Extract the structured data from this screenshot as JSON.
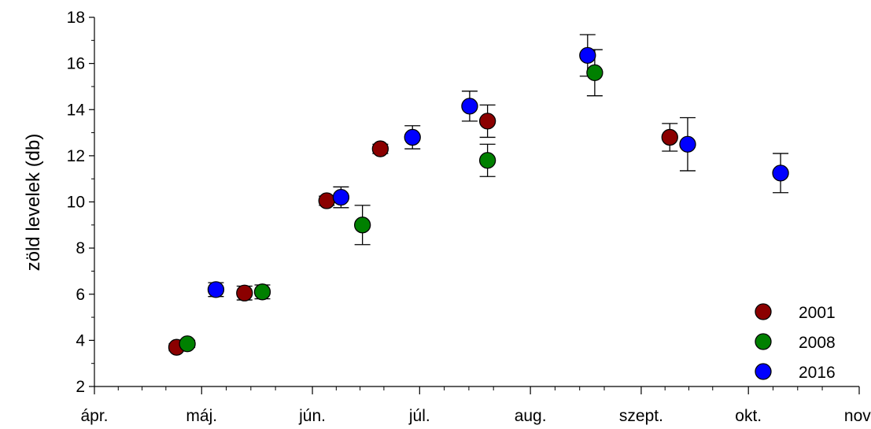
{
  "chart_data": {
    "type": "scatter",
    "title": "",
    "xlabel": "",
    "ylabel": "zöld levelek (db)",
    "x_ticks": [
      "ápr.",
      "máj.",
      "jún.",
      "júl.",
      "aug.",
      "szept.",
      "okt.",
      "nov."
    ],
    "xlim": [
      "04-01",
      "11-01"
    ],
    "ylim": [
      2,
      18
    ],
    "y_ticks": [
      2,
      4,
      6,
      8,
      10,
      12,
      14,
      16,
      18
    ],
    "grid": false,
    "legend_position": "bottom-right",
    "series": [
      {
        "name": "2001",
        "color": "#8b0000",
        "points": [
          {
            "x": "04-24",
            "y": 3.7,
            "err": 0.15
          },
          {
            "x": "05-13",
            "y": 6.05,
            "err": 0.3
          },
          {
            "x": "06-05",
            "y": 10.05,
            "err": 0.2
          },
          {
            "x": "06-20",
            "y": 12.3,
            "err": 0.2
          },
          {
            "x": "07-20",
            "y": 13.5,
            "err": 0.7
          },
          {
            "x": "09-09",
            "y": 12.8,
            "err": 0.6
          }
        ]
      },
      {
        "name": "2008",
        "color": "#008000",
        "points": [
          {
            "x": "04-27",
            "y": 3.85,
            "err": 0.15
          },
          {
            "x": "05-18",
            "y": 6.1,
            "err": 0.3
          },
          {
            "x": "06-15",
            "y": 9.0,
            "err": 0.85
          },
          {
            "x": "07-20",
            "y": 11.8,
            "err": 0.7
          },
          {
            "x": "08-19",
            "y": 15.6,
            "err": 1.0
          }
        ]
      },
      {
        "name": "2016",
        "color": "#0000ff",
        "points": [
          {
            "x": "05-05",
            "y": 6.2,
            "err": 0.3
          },
          {
            "x": "06-09",
            "y": 10.2,
            "err": 0.45
          },
          {
            "x": "06-29",
            "y": 12.8,
            "err": 0.5
          },
          {
            "x": "07-15",
            "y": 14.15,
            "err": 0.65
          },
          {
            "x": "08-17",
            "y": 16.35,
            "err": 0.9
          },
          {
            "x": "09-14",
            "y": 12.5,
            "err": 1.15
          },
          {
            "x": "10-10",
            "y": 11.25,
            "err": 0.85
          }
        ]
      }
    ]
  }
}
